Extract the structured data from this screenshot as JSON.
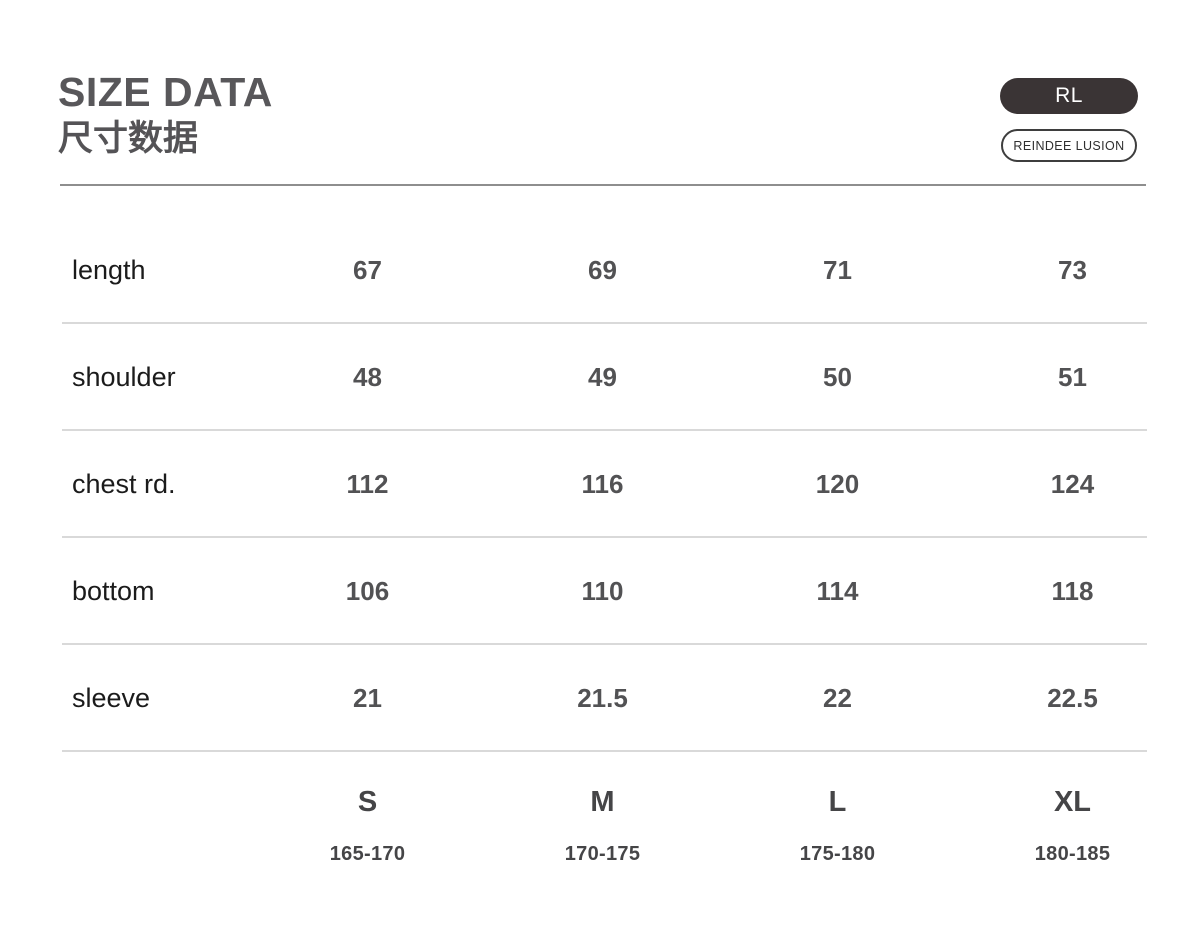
{
  "header": {
    "title_en": "SIZE DATA",
    "title_zh": "尺寸数据",
    "brand_badge": "RL",
    "brand_name": "REINDEE LUSION"
  },
  "colors": {
    "badge_background": "#3a3435",
    "badge_text": "#ffffff",
    "title_gray": "#58575a",
    "value_gray": "#525254",
    "header_rule": "#8e8e8e",
    "row_separator": "#d9d9d9",
    "background": "#ffffff"
  },
  "chart_data": {
    "type": "table",
    "title": "SIZE DATA 尺寸数据",
    "rows": [
      {
        "label": "length",
        "values": [
          "67",
          "69",
          "71",
          "73"
        ]
      },
      {
        "label": "shoulder",
        "values": [
          "48",
          "49",
          "50",
          "51"
        ]
      },
      {
        "label": "chest rd.",
        "values": [
          "112",
          "116",
          "120",
          "124"
        ]
      },
      {
        "label": "bottom",
        "values": [
          "106",
          "110",
          "114",
          "118"
        ]
      },
      {
        "label": "sleeve",
        "values": [
          "21",
          "21.5",
          "22",
          "22.5"
        ]
      }
    ],
    "columns": [
      {
        "size": "S",
        "height_range": "165-170"
      },
      {
        "size": "M",
        "height_range": "170-175"
      },
      {
        "size": "L",
        "height_range": "175-180"
      },
      {
        "size": "XL",
        "height_range": "180-185"
      }
    ],
    "layout": {
      "grid": "horizontal-separators-only",
      "legend_position": "none"
    }
  }
}
